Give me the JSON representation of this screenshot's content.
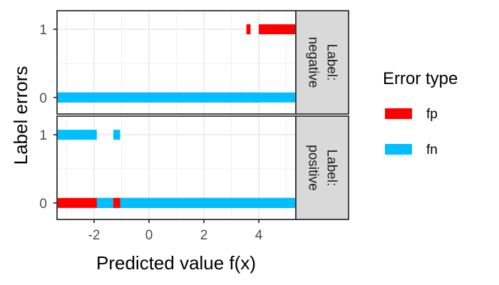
{
  "chart_data": {
    "type": "segment",
    "xlabel": "Predicted value f(x)",
    "ylabel": "Label errors",
    "xlim": [
      -3.35,
      5.35
    ],
    "x_ticks": [
      -2,
      0,
      2,
      4
    ],
    "x_tick_labels": [
      "-2",
      "0",
      "2",
      "4"
    ],
    "y_ticks": [
      0,
      1
    ],
    "y_tick_labels": [
      "0",
      "1"
    ],
    "grid": true,
    "legend": {
      "title": "Error type",
      "position": "right",
      "items": [
        {
          "name": "fp",
          "color": "#ff0000"
        },
        {
          "name": "fn",
          "color": "#00bfff"
        }
      ]
    },
    "panels": [
      {
        "strip_lines": [
          "Label:",
          "negative"
        ],
        "segments": [
          {
            "type": "fp",
            "y": 1,
            "x0": 3.55,
            "x1": 3.7
          },
          {
            "type": "fp",
            "y": 1,
            "x0": 4.0,
            "x1": 5.35
          },
          {
            "type": "fp",
            "y": 0,
            "x0": -3.35,
            "x1": 3.55
          },
          {
            "type": "fp",
            "y": 0,
            "x0": 3.7,
            "x1": 4.0
          },
          {
            "type": "fn",
            "y": 0,
            "x0": -3.35,
            "x1": 5.35
          }
        ]
      },
      {
        "strip_lines": [
          "Label:",
          "positive"
        ],
        "segments": [
          {
            "type": "fn",
            "y": 1,
            "x0": -3.35,
            "x1": -1.9
          },
          {
            "type": "fn",
            "y": 1,
            "x0": -1.3,
            "x1": -1.05
          },
          {
            "type": "fp",
            "y": 0,
            "x0": -3.35,
            "x1": 5.35
          },
          {
            "type": "fn",
            "y": 0,
            "x0": -1.9,
            "x1": -1.3
          },
          {
            "type": "fn",
            "y": 0,
            "x0": -1.05,
            "x1": 5.35
          },
          {
            "type": "fp",
            "y": 0,
            "x0": -1.3,
            "x1": -1.05
          }
        ]
      }
    ]
  }
}
